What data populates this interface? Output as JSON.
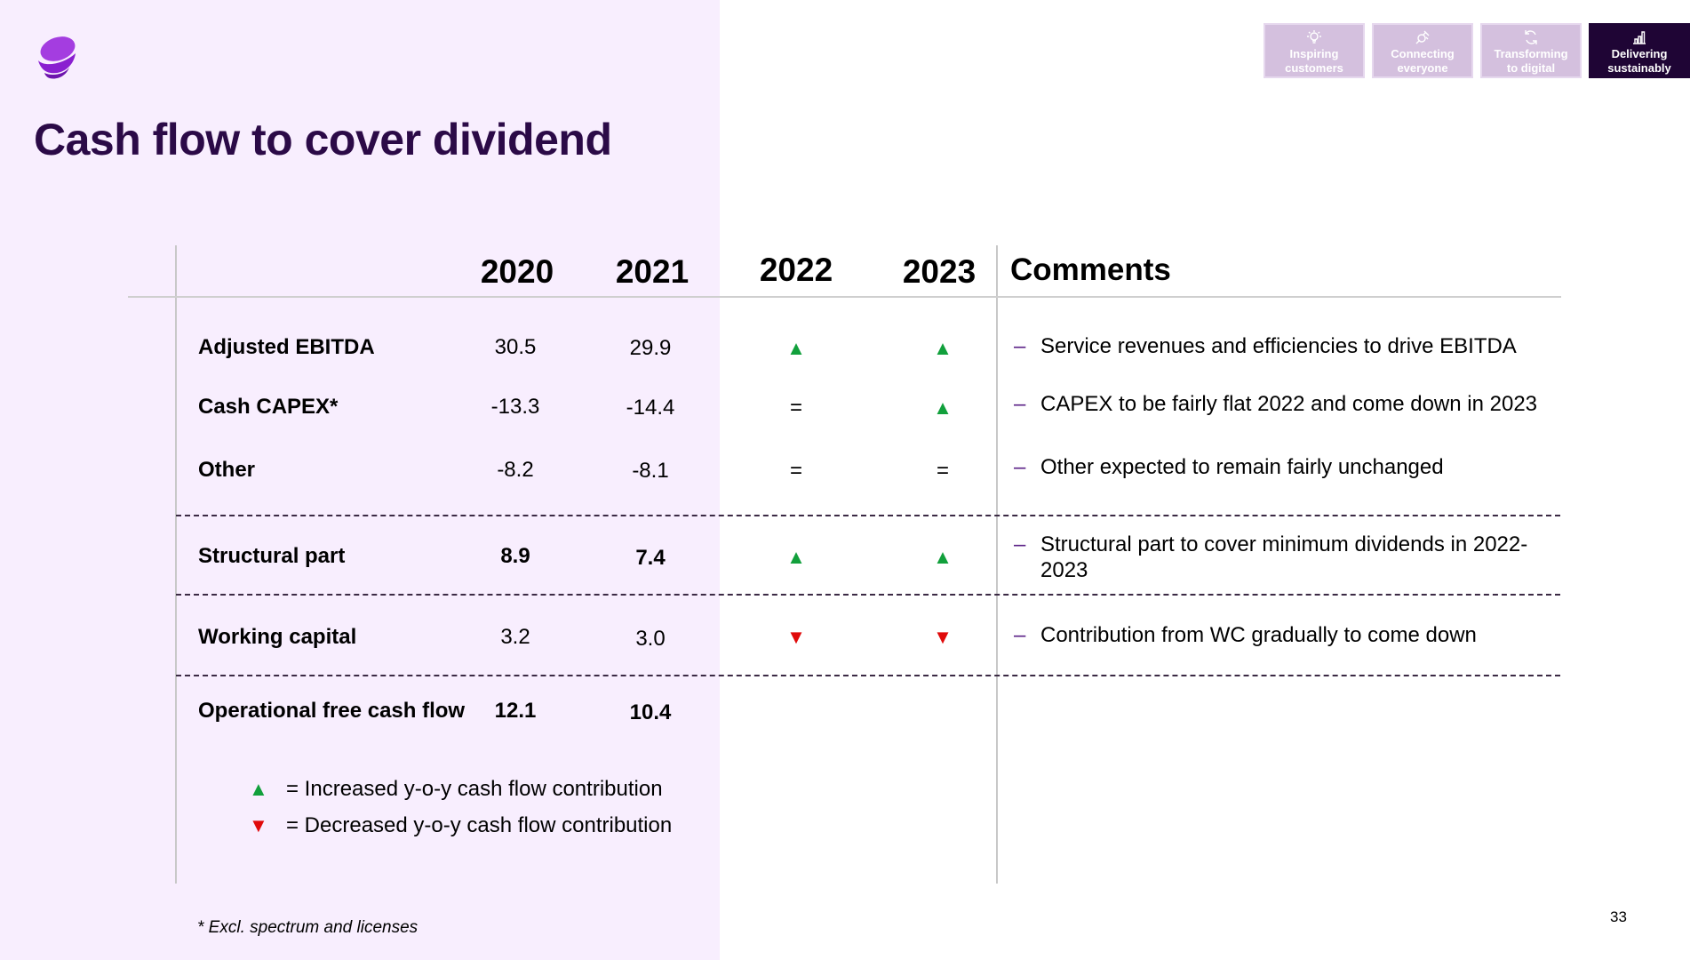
{
  "slide": {
    "title": "Cash flow to cover dividend",
    "page_number": "33",
    "footnote": "* Excl. spectrum and licenses",
    "accent_color": "#2b0a47",
    "panel_color": "#f8eefe"
  },
  "nav": {
    "tabs": [
      {
        "line1": "Inspiring",
        "line2": "customers",
        "icon": "lightbulb-icon",
        "active": false
      },
      {
        "line1": "Connecting",
        "line2": "everyone",
        "icon": "satellite-icon",
        "active": false
      },
      {
        "line1": "Transforming",
        "line2": "to digital",
        "icon": "refresh-icon",
        "active": false
      },
      {
        "line1": "Delivering",
        "line2": "sustainably",
        "icon": "bar-chart-icon",
        "active": true
      }
    ]
  },
  "table": {
    "headers": {
      "y2020": "2020",
      "y2021": "2021",
      "y2022": "2022",
      "y2023": "2023",
      "comments": "Comments"
    },
    "rows": [
      {
        "label": "Adjusted EBITDA",
        "v2020": "30.5",
        "v2021": "29.9",
        "i2022": "up",
        "i2023": "up",
        "comment": "Service revenues and efficiencies to drive EBITDA"
      },
      {
        "label": "Cash CAPEX*",
        "v2020": "-13.3",
        "v2021": "-14.4",
        "i2022": "equal",
        "i2023": "up",
        "comment": "CAPEX to be fairly flat 2022 and come down in 2023"
      },
      {
        "label": "Other",
        "v2020": "-8.2",
        "v2021": "-8.1",
        "i2022": "equal",
        "i2023": "equal",
        "comment": "Other expected to remain fairly unchanged"
      },
      {
        "label": "Structural part",
        "v2020": "8.9",
        "v2021": "7.4",
        "i2022": "up",
        "i2023": "up",
        "comment": "Structural part to cover minimum dividends in 2022-2023"
      },
      {
        "label": "Working capital",
        "v2020": "3.2",
        "v2021": "3.0",
        "i2022": "down",
        "i2023": "down",
        "comment": "Contribution from WC gradually to come down"
      },
      {
        "label": "Operational free cash flow",
        "v2020": "12.1",
        "v2021": "10.4"
      }
    ],
    "indicator_glyphs": {
      "up": "▲",
      "down": "▼",
      "equal": "="
    },
    "comment_dash": "–"
  },
  "legend": {
    "up_text": "= Increased y-o-y cash flow contribution",
    "down_text": "= Decreased y-o-y cash flow contribution",
    "up_color": "#12a03c",
    "down_color": "#e00a0a"
  }
}
